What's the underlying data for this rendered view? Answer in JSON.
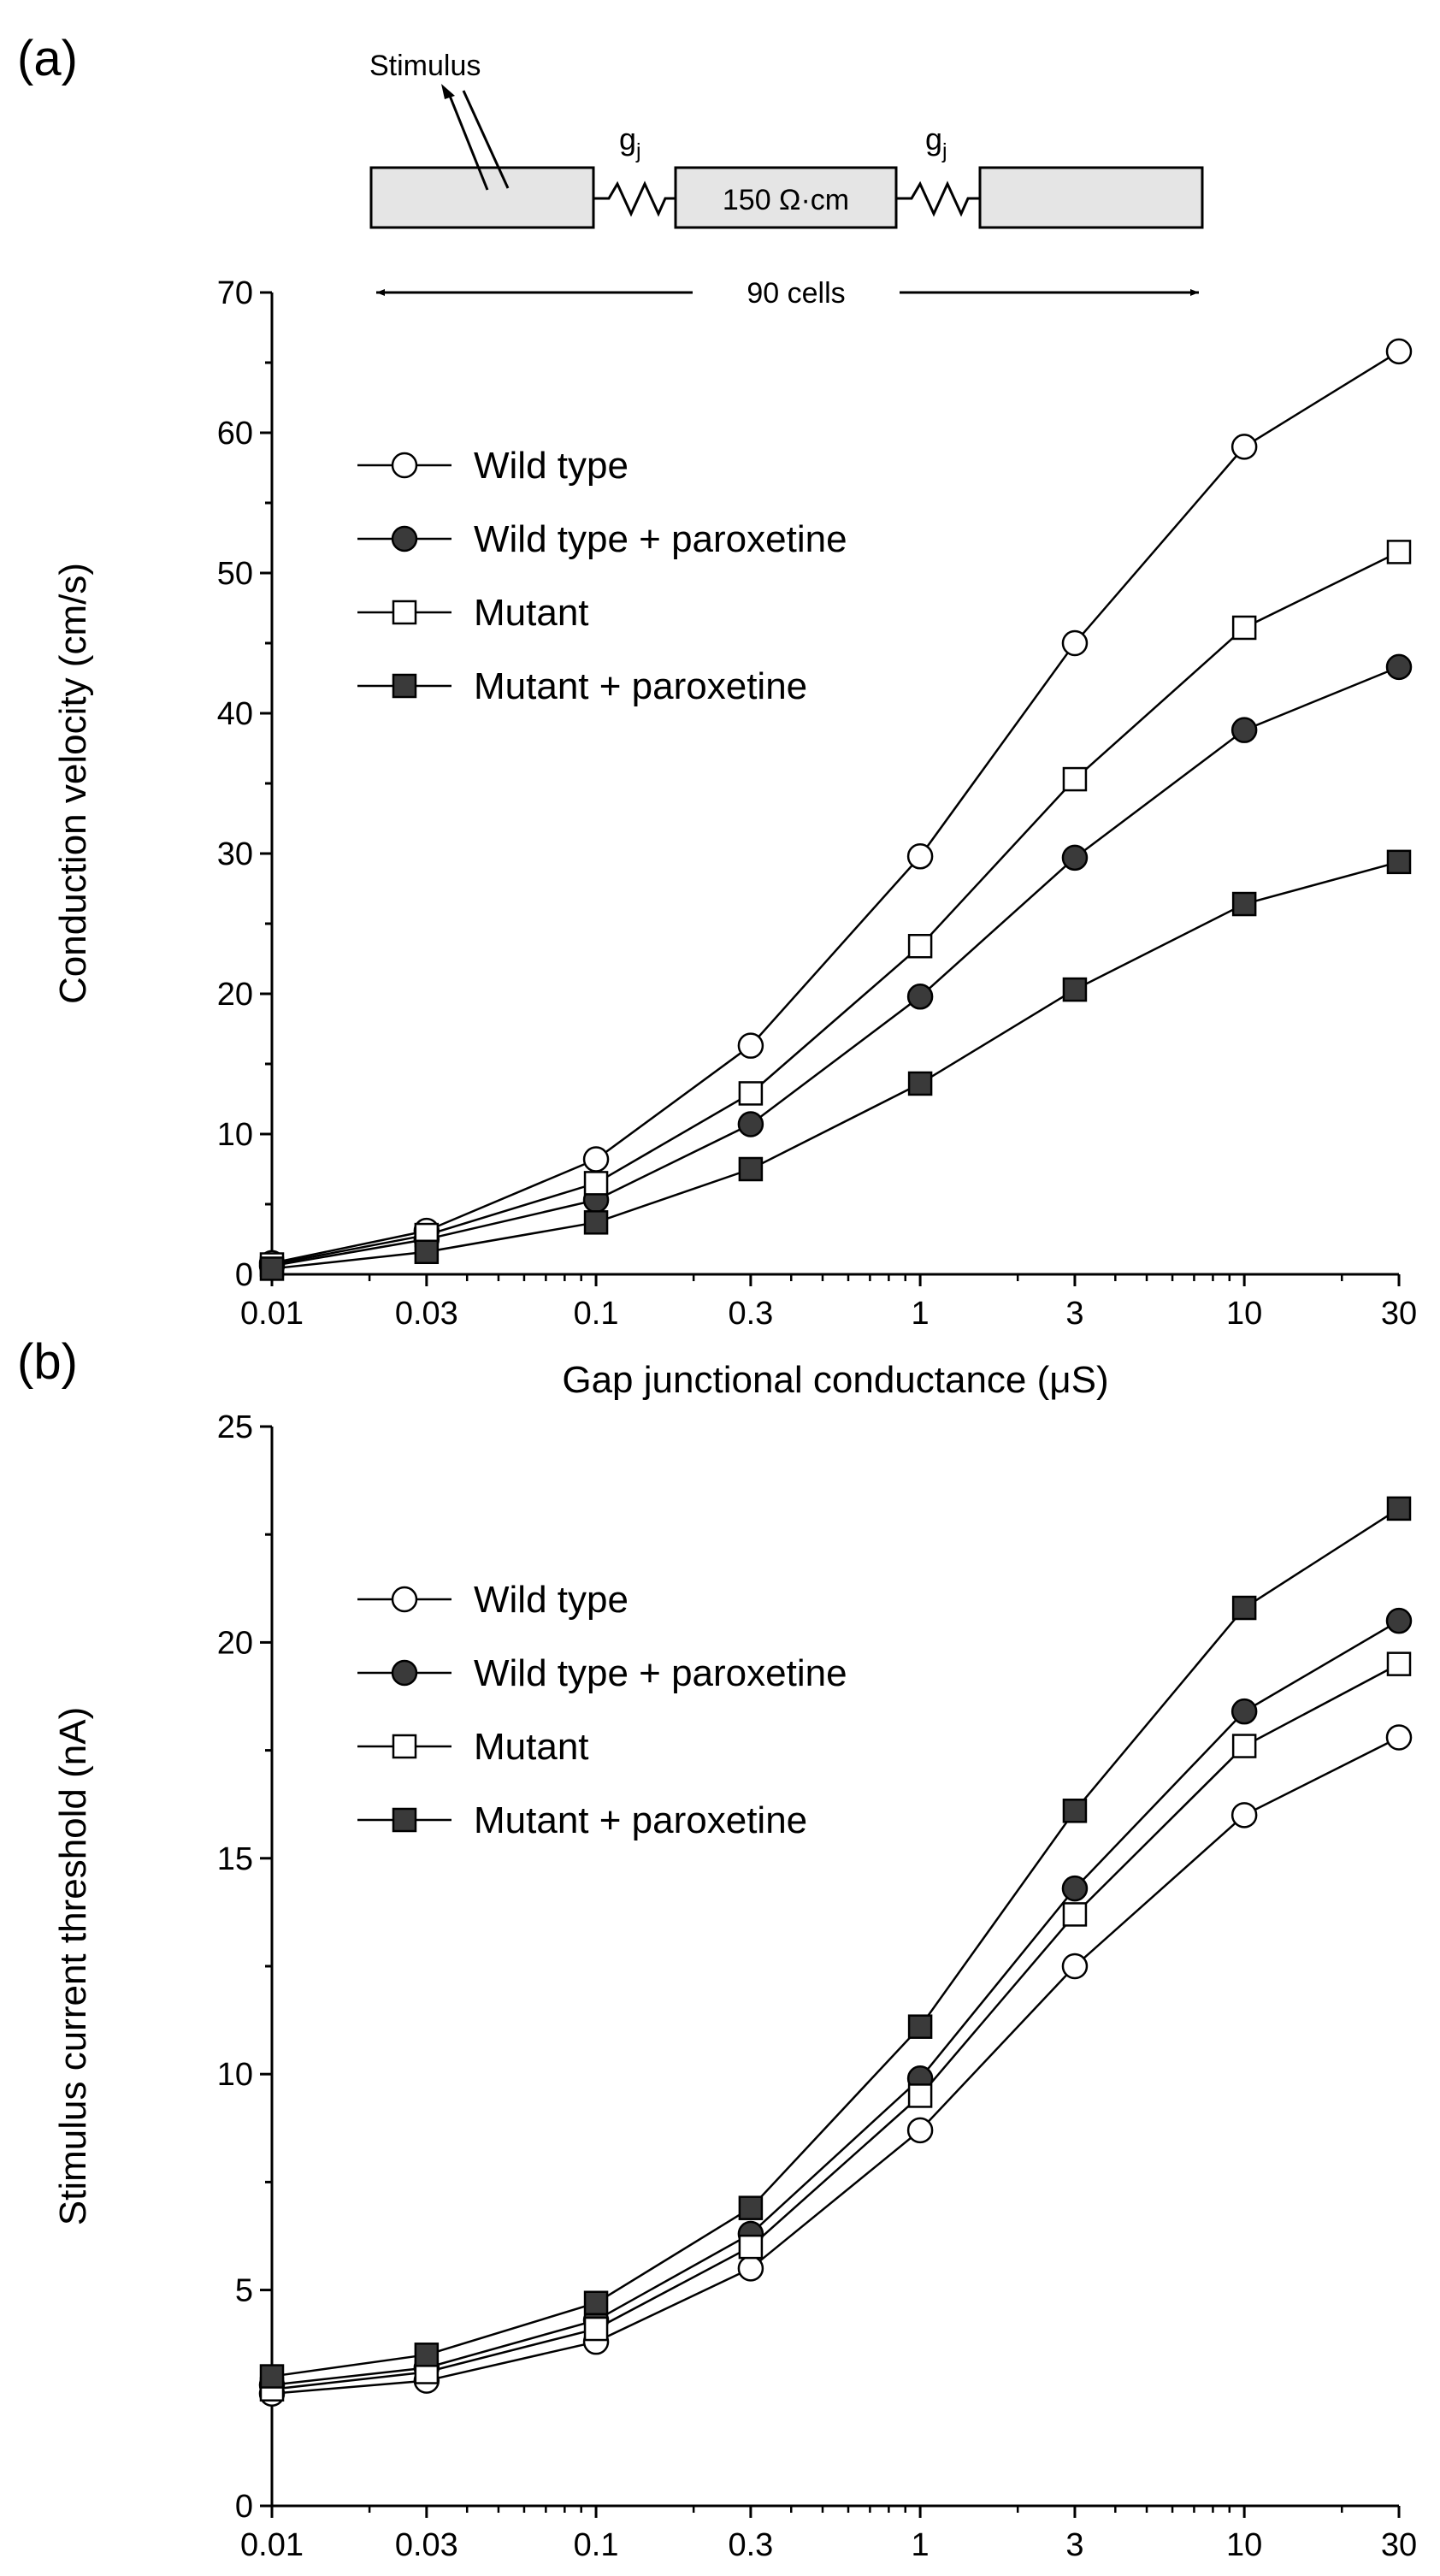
{
  "panels": {
    "a": {
      "letter": "(a)"
    },
    "b": {
      "letter": "(b)"
    }
  },
  "schematic": {
    "stimulus_label": "Stimulus",
    "gj_main": "g",
    "gj_sub": "j",
    "resistivity_label": "150 Ω·cm",
    "cells_label": "90 cells"
  },
  "style": {
    "line_color": "#000000",
    "filled_marker_color": "#3a3a3a",
    "open_marker_color": "#ffffff",
    "cell_fill": "#e5e5e5"
  },
  "chart_data": [
    {
      "type": "line",
      "panel": "a",
      "xlabel": "Gap junctional conductance (μS)",
      "ylabel": "Conduction velocity (cm/s)",
      "x_scale": "log",
      "x": [
        0.01,
        0.03,
        0.1,
        0.3,
        1,
        3,
        10,
        30
      ],
      "x_ticklabels": [
        "0.01",
        "0.03",
        "0.1",
        "0.3",
        "1",
        "3",
        "10",
        "30"
      ],
      "xlim": [
        0.01,
        30
      ],
      "ylim": [
        0,
        70
      ],
      "yticks": [
        0,
        10,
        20,
        30,
        40,
        50,
        60,
        70
      ],
      "legend_position": "top-left",
      "series": [
        {
          "name": "Wild type",
          "marker": "circle",
          "filled": false,
          "values": [
            0.8,
            3.1,
            8.2,
            16.3,
            29.8,
            45.0,
            59.0,
            65.8
          ]
        },
        {
          "name": "Wild type + paroxetine",
          "marker": "circle",
          "filled": true,
          "values": [
            0.6,
            2.5,
            5.3,
            10.7,
            19.8,
            29.7,
            38.8,
            43.3
          ]
        },
        {
          "name": "Mutant",
          "marker": "square",
          "filled": false,
          "values": [
            0.7,
            2.8,
            6.5,
            12.9,
            23.4,
            35.3,
            46.1,
            51.5
          ]
        },
        {
          "name": "Mutant + paroxetine",
          "marker": "square",
          "filled": true,
          "values": [
            0.4,
            1.6,
            3.7,
            7.5,
            13.6,
            20.3,
            26.4,
            29.4
          ]
        }
      ]
    },
    {
      "type": "line",
      "panel": "b",
      "xlabel": "Gap junctional conductance (μS)",
      "ylabel": "Stimulus current threshold (nA)",
      "x_scale": "log",
      "x": [
        0.01,
        0.03,
        0.1,
        0.3,
        1,
        3,
        10,
        30
      ],
      "x_ticklabels": [
        "0.01",
        "0.03",
        "0.1",
        "0.3",
        "1",
        "3",
        "10",
        "30"
      ],
      "xlim": [
        0.01,
        30
      ],
      "ylim": [
        0,
        25
      ],
      "yticks": [
        0,
        5,
        10,
        15,
        20,
        25
      ],
      "legend_position": "top-left",
      "series": [
        {
          "name": "Wild type",
          "marker": "circle",
          "filled": false,
          "values": [
            2.6,
            2.9,
            3.8,
            5.5,
            8.7,
            12.5,
            16.0,
            17.8
          ]
        },
        {
          "name": "Wild type + paroxetine",
          "marker": "circle",
          "filled": true,
          "values": [
            2.8,
            3.2,
            4.3,
            6.3,
            9.9,
            14.3,
            18.4,
            20.5
          ]
        },
        {
          "name": "Mutant",
          "marker": "square",
          "filled": false,
          "values": [
            2.7,
            3.1,
            4.1,
            6.0,
            9.5,
            13.7,
            17.6,
            19.5
          ]
        },
        {
          "name": "Mutant + paroxetine",
          "marker": "square",
          "filled": true,
          "values": [
            3.0,
            3.5,
            4.7,
            6.9,
            11.1,
            16.1,
            20.8,
            23.1
          ]
        }
      ]
    }
  ]
}
